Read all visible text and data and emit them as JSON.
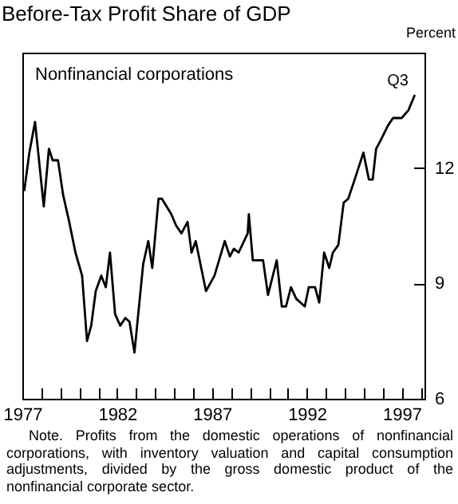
{
  "chart_data": {
    "type": "line",
    "title": "Before-Tax Profit Share of GDP",
    "subtitle": "Nonfinancial corporations",
    "ylabel": "Percent",
    "x": [
      1977.1,
      1977.37,
      1977.67,
      1978.13,
      1978.4,
      1978.6,
      1978.88,
      1979.15,
      1979.47,
      1979.8,
      1980.15,
      1980.41,
      1980.63,
      1980.87,
      1981.16,
      1981.4,
      1981.62,
      1981.89,
      1982.16,
      1982.43,
      1982.65,
      1982.91,
      1983.37,
      1983.64,
      1983.85,
      1984.18,
      1984.36,
      1984.85,
      1985.11,
      1985.39,
      1985.71,
      1985.92,
      1986.14,
      1986.68,
      1987.13,
      1987.67,
      1987.94,
      1988.15,
      1988.4,
      1988.88,
      1988.94,
      1989.15,
      1989.69,
      1989.95,
      1990.41,
      1990.68,
      1990.9,
      1991.16,
      1991.44,
      1991.89,
      1992.1,
      1992.43,
      1992.65,
      1992.91,
      1993.18,
      1993.37,
      1993.66,
      1993.94,
      1994.18,
      1994.52,
      1994.98,
      1995.27,
      1995.47,
      1995.65,
      1995.87,
      1996.27,
      1996.54,
      1997.0,
      1997.35,
      1997.69
    ],
    "series": [
      {
        "color": "#000000",
        "values": [
          11.4,
          12.4,
          13.2,
          11.0,
          12.5,
          12.2,
          12.2,
          11.3,
          10.6,
          9.8,
          9.2,
          7.5,
          7.9,
          8.8,
          9.2,
          8.9,
          9.8,
          8.2,
          7.9,
          8.1,
          8.0,
          7.2,
          9.5,
          10.1,
          9.4,
          11.2,
          11.2,
          10.8,
          10.5,
          10.3,
          10.6,
          9.8,
          10.1,
          8.8,
          9.2,
          10.1,
          9.7,
          9.9,
          9.8,
          10.3,
          10.8,
          9.6,
          9.6,
          8.7,
          9.6,
          8.4,
          8.4,
          8.9,
          8.6,
          8.4,
          8.9,
          8.9,
          8.5,
          9.8,
          9.4,
          9.8,
          10.0,
          11.1,
          11.2,
          11.7,
          12.4,
          11.7,
          11.7,
          12.5,
          12.7,
          13.1,
          13.3,
          13.3,
          13.5,
          13.9
        ]
      }
    ],
    "xlim": [
      1977,
      1998.2
    ],
    "ylim": [
      6,
      15
    ],
    "xticks": [
      1977,
      {
        "value": 1978,
        "label": null
      },
      {
        "value": 1979,
        "label": null
      },
      {
        "value": 1980,
        "label": null
      },
      {
        "value": 1981,
        "label": null
      },
      1982,
      {
        "value": 1983,
        "label": null
      },
      {
        "value": 1984,
        "label": null
      },
      {
        "value": 1985,
        "label": null
      },
      {
        "value": 1986,
        "label": null
      },
      1987,
      {
        "value": 1988,
        "label": null
      },
      {
        "value": 1989,
        "label": null
      },
      {
        "value": 1990,
        "label": null
      },
      {
        "value": 1991,
        "label": null
      },
      1992,
      {
        "value": 1993,
        "label": null
      },
      {
        "value": 1994,
        "label": null
      },
      {
        "value": 1995,
        "label": null
      },
      {
        "value": 1996,
        "label": null
      },
      1997,
      {
        "value": 1998,
        "label": null
      }
    ],
    "yticks": [
      6,
      9,
      12
    ],
    "annotations": [
      {
        "text": "Q3",
        "x": 1997.69,
        "y": 13.9
      },
      "Note. Profits from the domestic operations of nonfinancial corporations, with inventory valuation and capital consumption adjustments, divided by the gross domestic product of the nonfinancial corporate sector."
    ],
    "grid": false
  }
}
